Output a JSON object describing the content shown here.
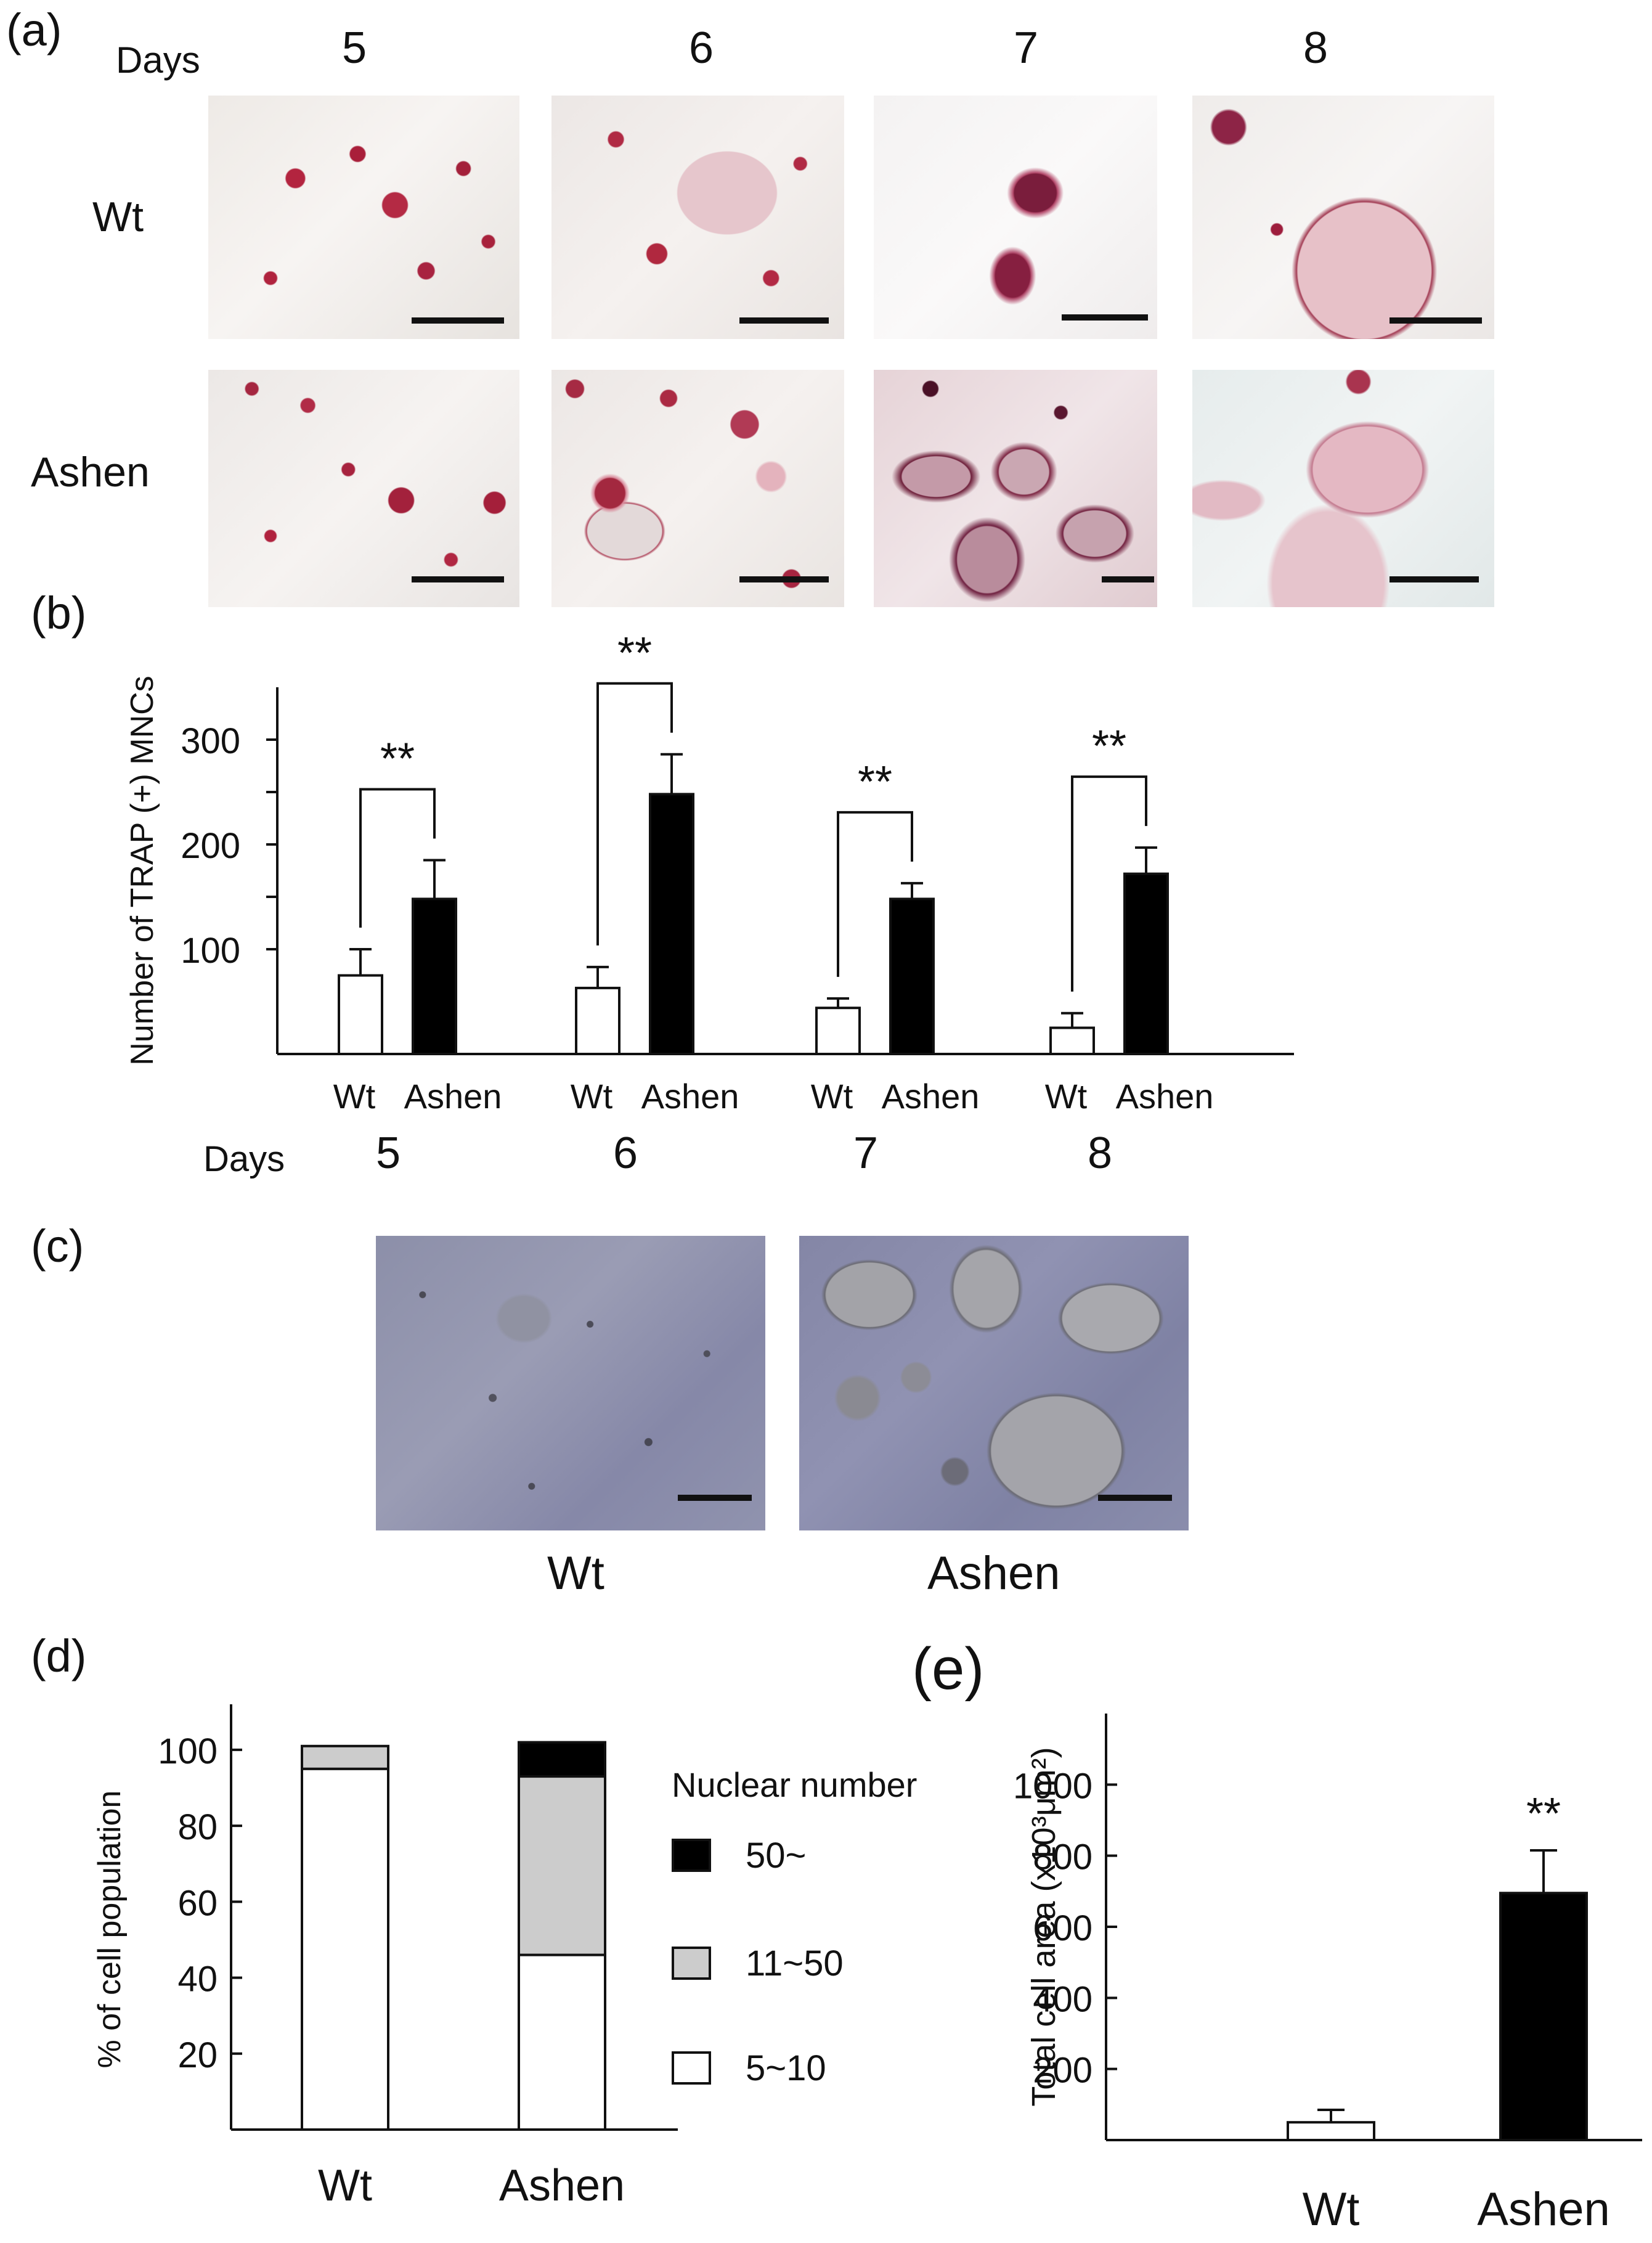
{
  "panels": {
    "a": {
      "letter": "(a)",
      "days_label": "Days",
      "days": [
        "5",
        "6",
        "7",
        "8"
      ],
      "rows": [
        "Wt",
        "Ashen"
      ]
    },
    "b": {
      "letter": "(b)"
    },
    "c": {
      "letter": "(c)",
      "labels": [
        "Wt",
        "Ashen"
      ]
    },
    "d": {
      "letter": "(d)"
    },
    "e": {
      "letter": "(e)"
    }
  },
  "chart_data": [
    {
      "type": "bar",
      "panel": "b",
      "ylabel": "Number of TRAP (+) MNCs",
      "ylim": [
        0,
        350
      ],
      "yticks": [
        100,
        200,
        300
      ],
      "days_label": "Days",
      "categories": [
        "5",
        "6",
        "7",
        "8"
      ],
      "group_labels": [
        "Wt",
        "Ashen"
      ],
      "series": [
        {
          "name": "Wt",
          "fill": "#ffffff",
          "values": [
            75,
            63,
            44,
            25
          ],
          "errors": [
            25,
            20,
            9,
            14
          ]
        },
        {
          "name": "Ashen",
          "fill": "#000000",
          "values": [
            148,
            248,
            148,
            172
          ],
          "errors": [
            37,
            38,
            15,
            25
          ]
        }
      ],
      "significance": [
        "**",
        "**",
        "**",
        "**"
      ]
    },
    {
      "type": "bar",
      "stacked": true,
      "panel": "d",
      "ylabel": "% of cell population",
      "ylim": [
        0,
        112
      ],
      "yticks": [
        20,
        40,
        60,
        80,
        100
      ],
      "categories": [
        "Wt",
        "Ashen"
      ],
      "legend_title": "Nuclear number",
      "legend_position": "right",
      "series": [
        {
          "name": "5~10",
          "color": "#ffffff",
          "values": [
            95,
            46
          ]
        },
        {
          "name": "11~50",
          "color": "#cccccc",
          "values": [
            6,
            47
          ]
        },
        {
          "name": "50~",
          "color": "#000000",
          "values": [
            0,
            9
          ]
        }
      ]
    },
    {
      "type": "bar",
      "panel": "e",
      "ylabel": "Total cell  area (x10³μm²)",
      "ylim": [
        0,
        1200
      ],
      "yticks": [
        200,
        400,
        600,
        800,
        1000
      ],
      "categories": [
        "Wt",
        "Ashen"
      ],
      "values": [
        50,
        695
      ],
      "errors": [
        35,
        120
      ],
      "fills": [
        "#ffffff",
        "#000000"
      ],
      "significance": [
        "",
        "**"
      ]
    }
  ]
}
